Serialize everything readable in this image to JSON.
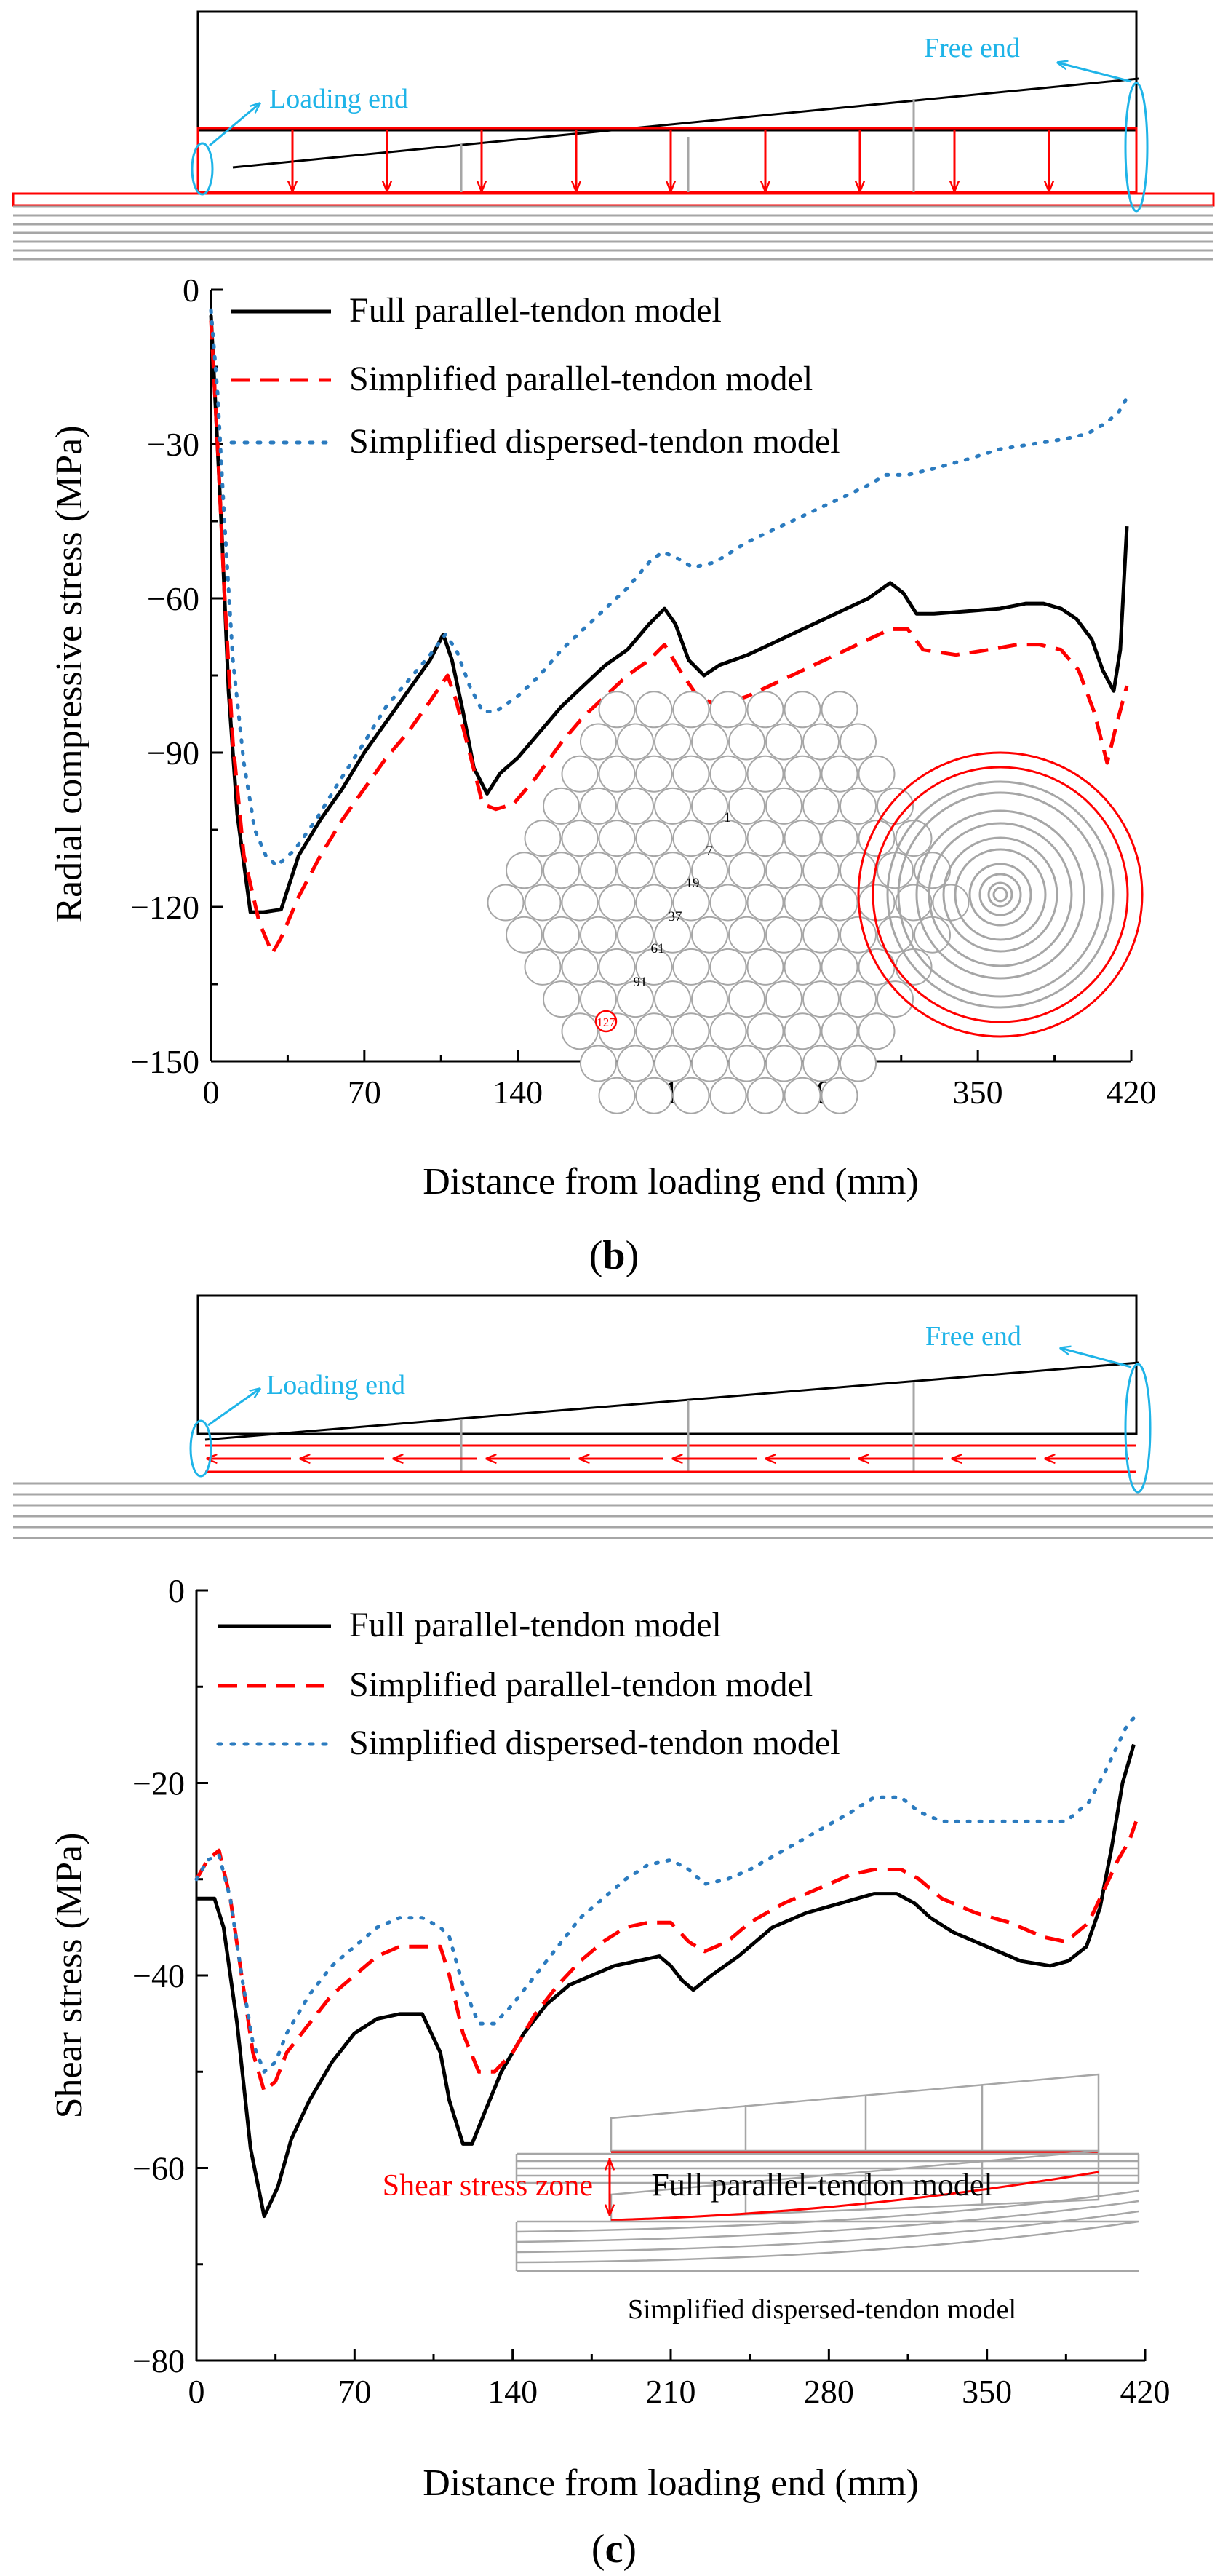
{
  "colors": {
    "black": "#000000",
    "red": "#ff0000",
    "blue": "#2b7bbf",
    "cyan": "#1fb4e8",
    "gray": "#a6a6a6"
  },
  "panel_b": {
    "schematic": {
      "loading_end": "Loading end",
      "free_end": "Free end"
    },
    "hex_labels": [
      "1",
      "7",
      "19",
      "37",
      "61",
      "91",
      "127"
    ],
    "panel_label": "(b)"
  },
  "panel_c": {
    "schematic": {
      "loading_end": "Loading end",
      "free_end": "Free end"
    },
    "inset": {
      "zone_label": "Shear stress zone",
      "full_model": "Full parallel-tendon model",
      "dispersed_model": "Simplified dispersed-tendon model"
    },
    "panel_label": "(c)"
  },
  "chart_data": [
    {
      "type": "line",
      "panel": "b",
      "title": "",
      "xlabel": "Distance from loading end (mm)",
      "ylabel": "Radial compressive stress (MPa)",
      "xlim": [
        0,
        420
      ],
      "ylim": [
        -150,
        0
      ],
      "xticks": [
        0,
        70,
        140,
        210,
        280,
        350,
        420
      ],
      "yticks": [
        0,
        -30,
        -60,
        -90,
        -120,
        -150
      ],
      "legend_position": "top-left",
      "series": [
        {
          "name": "Full parallel-tendon model",
          "style": "solid",
          "color": "#000000",
          "x": [
            0,
            2,
            5,
            8,
            12,
            18,
            24,
            32,
            40,
            50,
            60,
            70,
            80,
            90,
            100,
            106,
            110,
            115,
            120,
            126,
            132,
            140,
            150,
            160,
            170,
            180,
            190,
            200,
            207,
            212,
            218,
            225,
            232,
            245,
            260,
            275,
            290,
            300,
            310,
            316,
            322,
            330,
            345,
            360,
            372,
            380,
            388,
            395,
            402,
            407,
            412,
            415,
            418
          ],
          "y": [
            -5,
            -22,
            -48,
            -78,
            -102,
            -121,
            -121,
            -120.5,
            -110,
            -103,
            -97,
            -90,
            -84,
            -78,
            -72,
            -67,
            -72,
            -82,
            -93,
            -98,
            -94,
            -91,
            -86,
            -81,
            -77,
            -73,
            -70,
            -65,
            -62,
            -65,
            -72,
            -75,
            -73,
            -71,
            -68,
            -65,
            -62,
            -60,
            -57,
            -59,
            -63,
            -63,
            -62.5,
            -62,
            -61,
            -61,
            -62,
            -64,
            -68,
            -74,
            -78,
            -70,
            -46
          ]
        },
        {
          "name": "Simplified parallel-tendon model",
          "style": "dashed",
          "color": "#ff0000",
          "x": [
            0,
            3,
            6,
            10,
            15,
            22,
            28,
            32,
            40,
            50,
            60,
            70,
            80,
            90,
            100,
            108,
            112,
            118,
            124,
            130,
            138,
            148,
            160,
            170,
            180,
            190,
            200,
            207,
            214,
            222,
            232,
            245,
            260,
            275,
            290,
            300,
            310,
            318,
            325,
            340,
            355,
            368,
            378,
            388,
            396,
            403,
            409,
            413,
            418
          ],
          "y": [
            -6,
            -30,
            -58,
            -88,
            -110,
            -123,
            -129,
            -126,
            -118,
            -110,
            -103,
            -97,
            -91,
            -86,
            -80,
            -75,
            -80,
            -90,
            -100,
            -101,
            -100,
            -95,
            -88,
            -83,
            -79,
            -75,
            -72,
            -69,
            -74,
            -79,
            -81,
            -79,
            -76,
            -73,
            -70,
            -68,
            -66,
            -66,
            -70,
            -71,
            -70,
            -69,
            -69,
            -70,
            -74,
            -82,
            -92,
            -85,
            -77
          ]
        },
        {
          "name": "Simplified dispersed-tendon model",
          "style": "dotted",
          "color": "#2b7bbf",
          "x": [
            0,
            3,
            6,
            10,
            15,
            20,
            25,
            30,
            38,
            48,
            58,
            70,
            80,
            90,
            100,
            107,
            112,
            118,
            124,
            130,
            140,
            150,
            160,
            170,
            180,
            190,
            200,
            206,
            212,
            220,
            230,
            245,
            260,
            275,
            290,
            300,
            308,
            318,
            328,
            345,
            360,
            375,
            390,
            400,
            408,
            414,
            418
          ],
          "y": [
            -4,
            -20,
            -44,
            -72,
            -92,
            -105,
            -110,
            -112,
            -109,
            -103,
            -96,
            -88,
            -81,
            -76,
            -71,
            -67,
            -70,
            -77,
            -82,
            -82,
            -79,
            -75,
            -70,
            -66,
            -62,
            -58,
            -53,
            -51,
            -52,
            -54,
            -53,
            -49,
            -46,
            -43,
            -40,
            -38,
            -36,
            -36,
            -35,
            -33,
            -31,
            -30,
            -29,
            -28,
            -26,
            -24,
            -21
          ]
        }
      ]
    },
    {
      "type": "line",
      "panel": "c",
      "title": "",
      "xlabel": "Distance from loading end (mm)",
      "ylabel": "Shear stress (MPa)",
      "xlim": [
        0,
        420
      ],
      "ylim": [
        -80,
        0
      ],
      "xticks": [
        0,
        70,
        140,
        210,
        280,
        350,
        420
      ],
      "yticks": [
        0,
        -20,
        -40,
        -60,
        -80
      ],
      "legend_position": "top-left",
      "series": [
        {
          "name": "Full parallel-tendon model",
          "style": "solid",
          "color": "#000000",
          "x": [
            0,
            8,
            12,
            18,
            24,
            30,
            36,
            42,
            50,
            60,
            70,
            80,
            90,
            100,
            108,
            112,
            118,
            122,
            128,
            135,
            145,
            155,
            165,
            175,
            185,
            195,
            205,
            210,
            215,
            220,
            228,
            240,
            255,
            270,
            285,
            300,
            310,
            318,
            325,
            335,
            350,
            365,
            378,
            386,
            394,
            400,
            405,
            410,
            415
          ],
          "y": [
            -32,
            -32,
            -35,
            -45,
            -58,
            -65,
            -62,
            -57,
            -53,
            -49,
            -46,
            -44.5,
            -44,
            -44,
            -48,
            -53,
            -57.5,
            -57.5,
            -54,
            -50,
            -46,
            -43,
            -41,
            -40,
            -39,
            -38.5,
            -38,
            -39,
            -40.5,
            -41.5,
            -40,
            -38,
            -35,
            -33.5,
            -32.5,
            -31.5,
            -31.5,
            -32.5,
            -34,
            -35.5,
            -37,
            -38.5,
            -39,
            -38.5,
            -37,
            -33,
            -27,
            -20,
            -16
          ]
        },
        {
          "name": "Simplified parallel-tendon model",
          "style": "dashed",
          "color": "#ff0000",
          "x": [
            0,
            5,
            10,
            15,
            20,
            25,
            30,
            35,
            40,
            50,
            60,
            70,
            80,
            90,
            100,
            108,
            112,
            118,
            125,
            132,
            140,
            150,
            160,
            170,
            180,
            190,
            200,
            210,
            218,
            225,
            235,
            245,
            260,
            275,
            290,
            300,
            312,
            320,
            330,
            345,
            360,
            375,
            385,
            395,
            402,
            408,
            413,
            416
          ],
          "y": [
            -30,
            -28,
            -27,
            -32,
            -40,
            -48,
            -52,
            -51,
            -48,
            -45,
            -42,
            -40,
            -38,
            -37,
            -37,
            -37,
            -40,
            -46,
            -50,
            -50,
            -48,
            -44,
            -41,
            -38.5,
            -36.5,
            -35,
            -34.5,
            -34.5,
            -36.5,
            -37.5,
            -36.5,
            -34.5,
            -32.5,
            -31,
            -29.5,
            -29,
            -29,
            -30,
            -32,
            -33.5,
            -34.5,
            -36,
            -36.5,
            -34.5,
            -31,
            -28,
            -26,
            -24
          ]
        },
        {
          "name": "Simplified dispersed-tendon model",
          "style": "dotted",
          "color": "#2b7bbf",
          "x": [
            0,
            5,
            10,
            15,
            20,
            25,
            30,
            35,
            40,
            50,
            60,
            70,
            80,
            90,
            100,
            108,
            112,
            118,
            125,
            132,
            140,
            150,
            160,
            170,
            180,
            190,
            200,
            210,
            218,
            225,
            235,
            245,
            260,
            275,
            290,
            300,
            312,
            320,
            330,
            345,
            360,
            375,
            385,
            395,
            402,
            408,
            412,
            416
          ],
          "y": [
            -30,
            -28,
            -27.5,
            -32,
            -40,
            -47,
            -50,
            -49,
            -46,
            -42,
            -39,
            -37,
            -35,
            -34,
            -34,
            -35,
            -36,
            -41,
            -45,
            -45,
            -43,
            -40,
            -37,
            -34,
            -32,
            -30,
            -28.5,
            -28,
            -29,
            -30.5,
            -30,
            -29,
            -27,
            -25,
            -23,
            -21.5,
            -21.5,
            -23,
            -24,
            -24,
            -24,
            -24,
            -24,
            -22,
            -19,
            -16,
            -14,
            -13
          ]
        }
      ]
    }
  ]
}
